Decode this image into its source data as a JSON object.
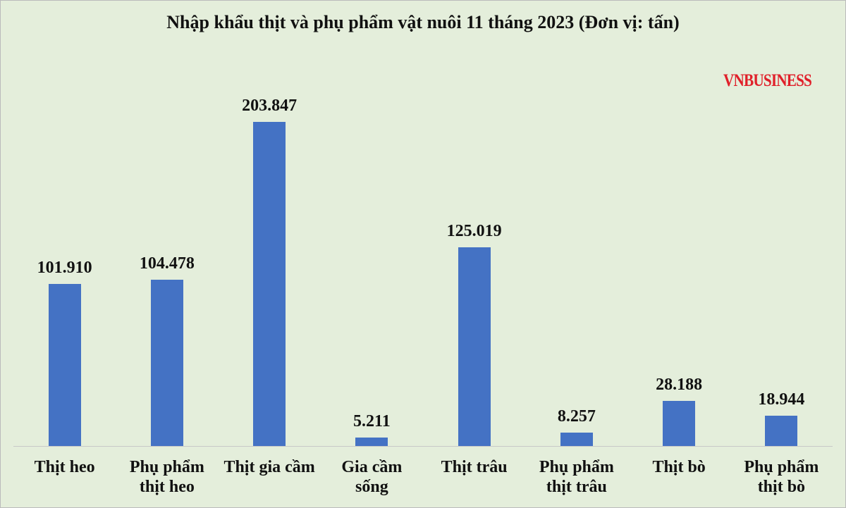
{
  "chart_data": {
    "type": "bar",
    "title": "Nhập khẩu thịt và phụ phẩm vật nuôi 11 tháng 2023 (Đơn vị: tấn)",
    "source": "VNBUSINESS",
    "categories": [
      "Thịt heo",
      "Phụ phẩm\nthịt heo",
      "Thịt gia cầm",
      "Gia cầm\nsống",
      "Thịt trâu",
      "Phụ phẩm\nthịt trâu",
      "Thịt bò",
      "Phụ phẩm\nthịt bò"
    ],
    "values": [
      101910,
      104478,
      203847,
      5211,
      125019,
      8257,
      28188,
      18944
    ],
    "value_labels": [
      "101.910",
      "104.478",
      "203.847",
      "5.211",
      "125.019",
      "8.257",
      "28.188",
      "18.944"
    ],
    "color": "#4472c4"
  }
}
